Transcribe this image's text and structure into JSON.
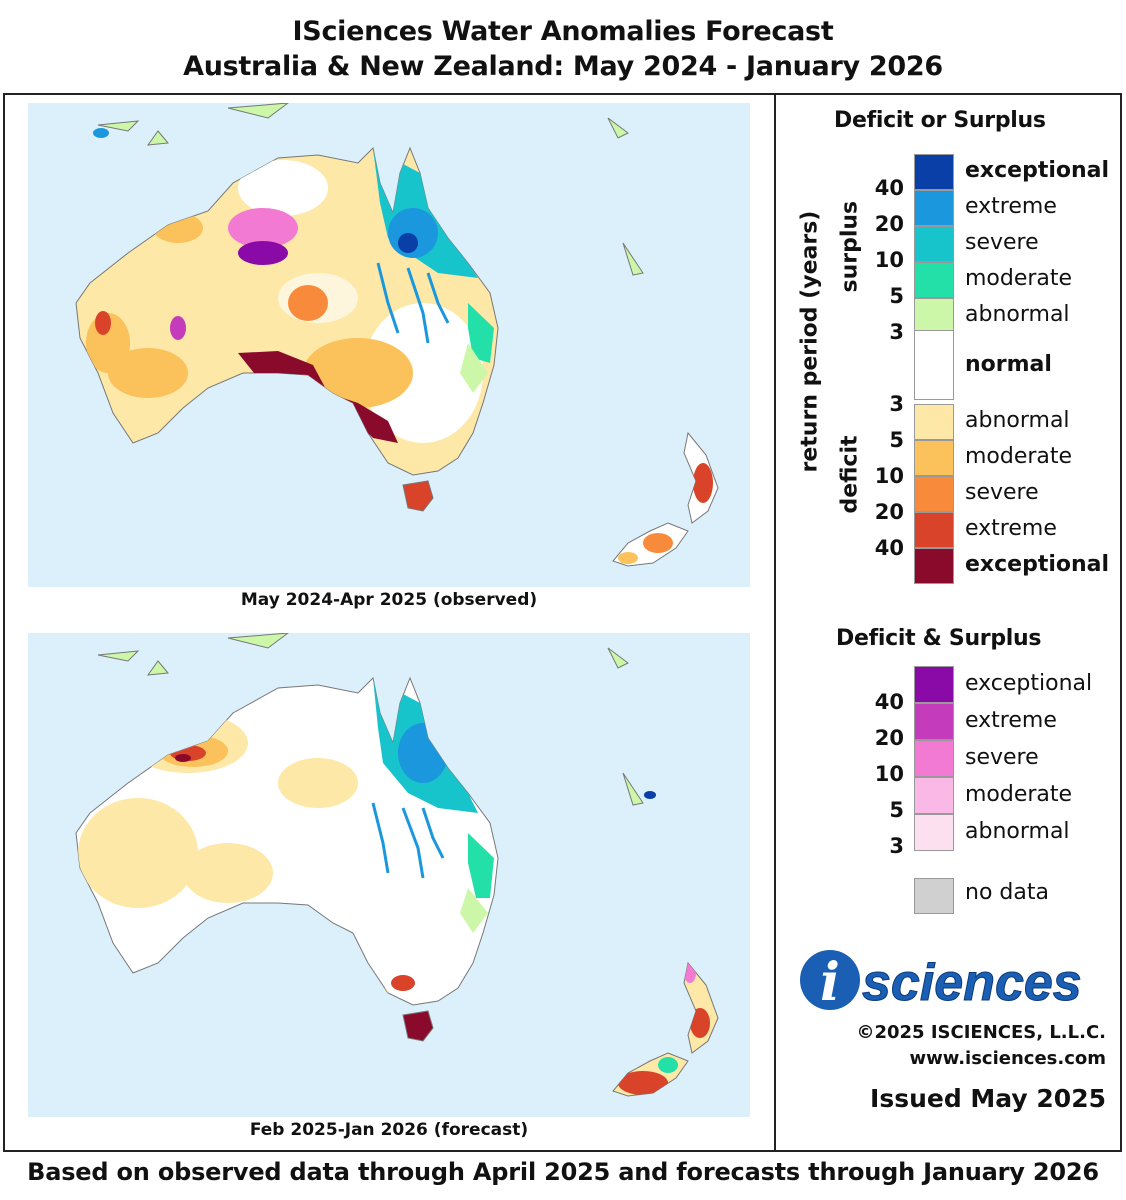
{
  "header": {
    "title_line1": "ISciences Water Anomalies Forecast",
    "title_line2": "Australia & New Zealand: May 2024 - January 2026"
  },
  "maps": {
    "top_caption": "May 2024-Apr 2025 (observed)",
    "bottom_caption": "Feb 2025-Jan 2026 (forecast)"
  },
  "legend": {
    "deficit_or_surplus_title": "Deficit or Surplus",
    "axis_label": "return period (years)",
    "surplus_label": "surplus",
    "deficit_label": "deficit",
    "surplus_classes": [
      {
        "label": "exceptional",
        "color": "#0a3fa8"
      },
      {
        "label": "extreme",
        "color": "#1b97de"
      },
      {
        "label": "severe",
        "color": "#17c4cc"
      },
      {
        "label": "moderate",
        "color": "#22e0a8"
      },
      {
        "label": "abnormal",
        "color": "#ccf7a8"
      }
    ],
    "normal_label": "normal",
    "deficit_classes": [
      {
        "label": "abnormal",
        "color": "#fde8a8"
      },
      {
        "label": "moderate",
        "color": "#fbc15a"
      },
      {
        "label": "severe",
        "color": "#f88a3c"
      },
      {
        "label": "extreme",
        "color": "#d9432a"
      },
      {
        "label": "exceptional",
        "color": "#8a0a2c"
      }
    ],
    "surplus_ticks": [
      "40",
      "20",
      "10",
      "5",
      "3"
    ],
    "deficit_ticks": [
      "3",
      "5",
      "10",
      "20",
      "40"
    ],
    "both_title": "Deficit & Surplus",
    "both_classes": [
      {
        "label": "exceptional",
        "color": "#8a0aa8"
      },
      {
        "label": "extreme",
        "color": "#c43cbc"
      },
      {
        "label": "severe",
        "color": "#f27ad2"
      },
      {
        "label": "moderate",
        "color": "#f9b8e6"
      },
      {
        "label": "abnormal",
        "color": "#fde0ef"
      }
    ],
    "both_ticks": [
      "40",
      "20",
      "10",
      "5",
      "3"
    ],
    "no_data_label": "no data",
    "no_data_color": "#d0d0d0"
  },
  "branding": {
    "logo_letter": "i",
    "logo_text": "sciences",
    "copyright": "©2025 ISCIENCES, L.L.C.",
    "website": "www.isciences.com",
    "issued": "Issued May 2025"
  },
  "footer": "Based on observed data through April 2025 and forecasts through January 2026"
}
